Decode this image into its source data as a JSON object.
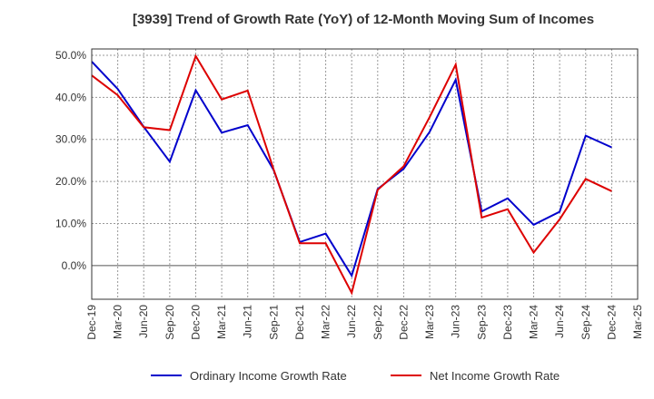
{
  "chart_data": {
    "type": "line",
    "title": "[3939]  Trend of Growth Rate (YoY) of 12-Month Moving Sum of Incomes",
    "xlabel": "",
    "ylabel": "",
    "categories": [
      "Dec-19",
      "Mar-20",
      "Jun-20",
      "Sep-20",
      "Dec-20",
      "Mar-21",
      "Jun-21",
      "Sep-21",
      "Dec-21",
      "Mar-22",
      "Jun-22",
      "Sep-22",
      "Dec-22",
      "Mar-23",
      "Jun-23",
      "Sep-23",
      "Dec-23",
      "Mar-24",
      "Jun-24",
      "Sep-24",
      "Dec-24",
      "Mar-25"
    ],
    "yticks": [
      "0.0%",
      "10.0%",
      "20.0%",
      "30.0%",
      "40.0%",
      "50.0%"
    ],
    "ylim": [
      -8,
      51.5
    ],
    "grid": true,
    "legend_position": "bottom",
    "series": [
      {
        "name": "Ordinary Income Growth Rate",
        "color": "#0000cc",
        "values": [
          48.5,
          42.0,
          33.0,
          24.7,
          41.7,
          31.6,
          33.4,
          22.7,
          5.6,
          7.6,
          -2.4,
          18.2,
          23.0,
          31.8,
          44.2,
          12.9,
          16.0,
          9.7,
          12.8,
          30.9,
          28.1,
          null
        ]
      },
      {
        "name": "Net Income Growth Rate",
        "color": "#dd0000",
        "values": [
          45.2,
          40.5,
          32.9,
          32.2,
          49.8,
          39.5,
          41.6,
          22.8,
          5.3,
          5.3,
          -6.5,
          18.0,
          23.6,
          35.3,
          47.8,
          11.4,
          13.4,
          3.1,
          11.0,
          20.6,
          17.7,
          null
        ]
      }
    ]
  }
}
